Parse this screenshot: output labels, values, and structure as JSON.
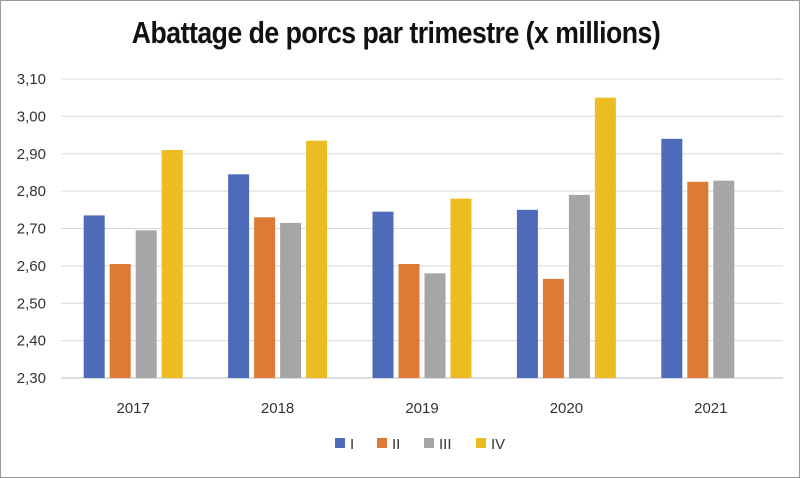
{
  "chart_data": {
    "type": "bar",
    "title": "Abattage de porcs par trimestre (x millions)",
    "xlabel": "",
    "ylabel": "",
    "categories": [
      "2017",
      "2018",
      "2019",
      "2020",
      "2021"
    ],
    "series": [
      {
        "name": "I",
        "color": "#4e6bb9",
        "values": [
          2.735,
          2.845,
          2.745,
          2.75,
          2.94
        ]
      },
      {
        "name": "II",
        "color": "#dd7a33",
        "values": [
          2.605,
          2.73,
          2.605,
          2.565,
          2.825
        ]
      },
      {
        "name": "III",
        "color": "#a6a6a6",
        "values": [
          2.695,
          2.715,
          2.58,
          2.79,
          2.828
        ]
      },
      {
        "name": "IV",
        "color": "#ecbd22",
        "values": [
          2.91,
          2.935,
          2.78,
          3.05,
          null
        ]
      }
    ],
    "ylim": [
      2.3,
      3.1
    ],
    "yticks": [
      "2,30",
      "2,40",
      "2,50",
      "2,60",
      "2,70",
      "2,80",
      "2,90",
      "3,00",
      "3,10"
    ],
    "grid": true,
    "legend_position": "bottom"
  }
}
